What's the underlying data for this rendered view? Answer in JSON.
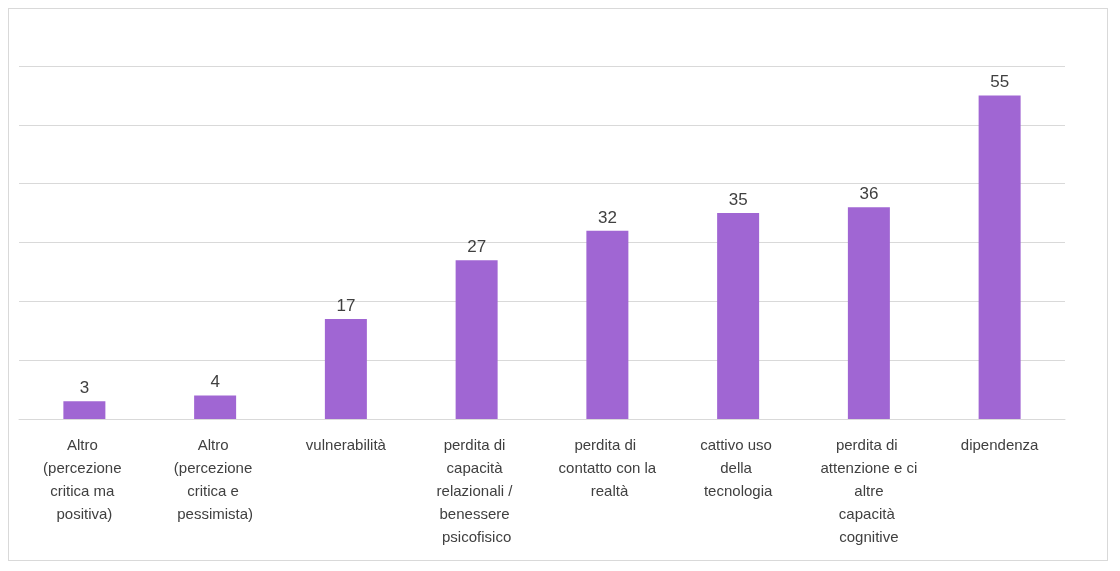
{
  "chart_data": {
    "type": "bar",
    "categories": [
      "Altro (percezione critica ma positiva)",
      "Altro (percezione critica e pessimista)",
      "vulnerabilità",
      "perdita di capacità relazionali / benessere psicofisico",
      "perdita di contatto con la realtà",
      "cattivo uso della tecnologia",
      "perdita di attenzione e ci altre capacità cognitive",
      "dipendenza"
    ],
    "values": [
      3,
      4,
      17,
      27,
      32,
      35,
      36,
      55
    ],
    "color": "#a066d3",
    "ylim": [
      0,
      60
    ],
    "yticks": [
      {
        "value": 0,
        "label": null
      },
      {
        "value": 10,
        "label": null
      },
      {
        "value": 20,
        "label": null
      },
      {
        "value": 30,
        "label": null
      },
      {
        "value": 40,
        "label": null
      },
      {
        "value": 50,
        "label": null
      },
      {
        "value": 60,
        "label": null
      }
    ],
    "grid": "y",
    "tick_labels": "x",
    "data_labels": true
  }
}
